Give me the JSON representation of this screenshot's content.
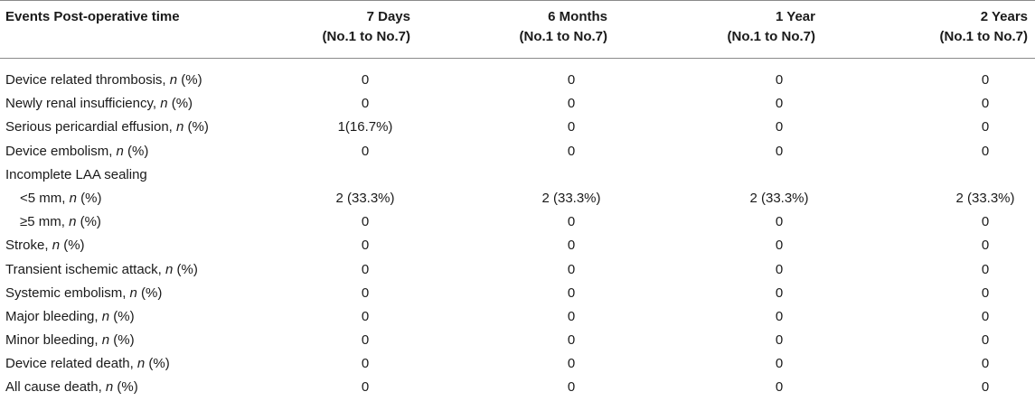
{
  "header": {
    "label": "Events Post-operative time",
    "columns": [
      {
        "line1": "7 Days",
        "line2": "(No.1 to No.7)"
      },
      {
        "line1": "6 Months",
        "line2": "(No.1 to No.7)"
      },
      {
        "line1": "1 Year",
        "line2": "(No.1 to No.7)"
      },
      {
        "line1": "2 Years",
        "line2": "(No.1 to No.7)"
      }
    ]
  },
  "rows": [
    {
      "label": "Device related thrombosis, ",
      "n": "n",
      "suffix": " (%)",
      "values": [
        "0",
        "0",
        "0",
        "0"
      ]
    },
    {
      "label": "Newly renal insufficiency, ",
      "n": "n",
      "suffix": " (%)",
      "values": [
        "0",
        "0",
        "0",
        "0"
      ]
    },
    {
      "label": "Serious pericardial effusion, ",
      "n": "n",
      "suffix": " (%)",
      "values": [
        "1(16.7%)",
        "0",
        "0",
        "0"
      ]
    },
    {
      "label": "Device embolism, ",
      "n": "n",
      "suffix": " (%)",
      "values": [
        "0",
        "0",
        "0",
        "0"
      ]
    },
    {
      "label": "Incomplete LAA sealing",
      "n": "",
      "suffix": "",
      "values": [
        "",
        "",
        "",
        ""
      ]
    },
    {
      "label": "<5 mm, ",
      "n": "n",
      "suffix": " (%)",
      "values": [
        "2 (33.3%)",
        "2 (33.3%)",
        "2 (33.3%)",
        "2 (33.3%)"
      ]
    },
    {
      "label": "≥5 mm, ",
      "n": "n",
      "suffix": " (%)",
      "values": [
        "0",
        "0",
        "0",
        "0"
      ]
    },
    {
      "label": "Stroke, ",
      "n": "n",
      "suffix": " (%)",
      "values": [
        "0",
        "0",
        "0",
        "0"
      ]
    },
    {
      "label": "Transient ischemic attack, ",
      "n": "n",
      "suffix": " (%)",
      "values": [
        "0",
        "0",
        "0",
        "0"
      ]
    },
    {
      "label": "Systemic embolism, ",
      "n": "n",
      "suffix": " (%)",
      "values": [
        "0",
        "0",
        "0",
        "0"
      ]
    },
    {
      "label": "Major bleeding, ",
      "n": "n",
      "suffix": " (%)",
      "values": [
        "0",
        "0",
        "0",
        "0"
      ]
    },
    {
      "label": "Minor bleeding, ",
      "n": "n",
      "suffix": " (%)",
      "values": [
        "0",
        "0",
        "0",
        "0"
      ]
    },
    {
      "label": "Device related death, ",
      "n": "n",
      "suffix": " (%)",
      "values": [
        "0",
        "0",
        "0",
        "0"
      ]
    },
    {
      "label": "All cause death, ",
      "n": "n",
      "suffix": " (%)",
      "values": [
        "0",
        "0",
        "0",
        "0"
      ]
    }
  ]
}
